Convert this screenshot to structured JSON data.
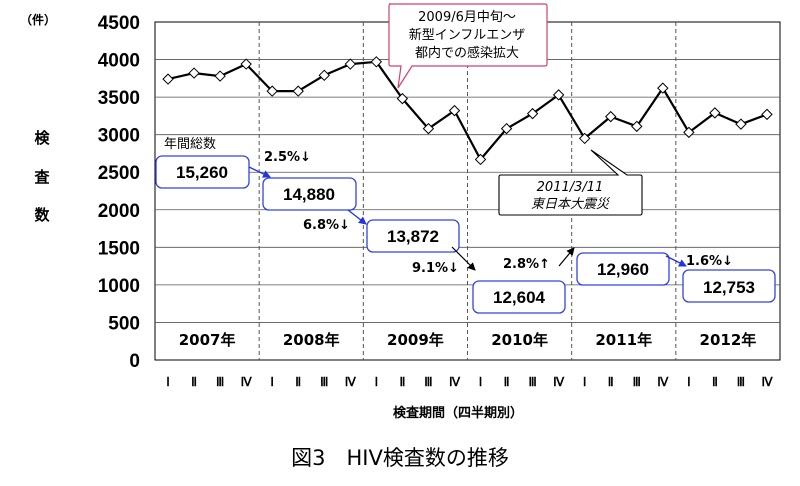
{
  "chart_data": {
    "type": "line",
    "y_unit": "（件）",
    "ylabel": [
      "検",
      "査",
      "数"
    ],
    "xlabel": "検査期間（四半期別）",
    "caption": "図3　HIV検査数の推移",
    "ylim": [
      0,
      4500
    ],
    "yticks": [
      0,
      500,
      1000,
      1500,
      2000,
      2500,
      3000,
      3500,
      4000,
      4500
    ],
    "grid": true,
    "years": [
      "2007年",
      "2008年",
      "2009年",
      "2010年",
      "2011年",
      "2012年"
    ],
    "quarters": [
      "Ⅰ",
      "Ⅱ",
      "Ⅲ",
      "Ⅳ"
    ],
    "series": [
      {
        "values": [
          3740,
          3820,
          3780,
          3940,
          3580,
          3580,
          3790,
          3940,
          3970,
          3480,
          3080,
          3320,
          2670,
          3080,
          3280,
          3530,
          2950,
          3240,
          3110,
          3620,
          3030,
          3290,
          3140,
          3270
        ]
      }
    ],
    "annual_totals": {
      "label": "年間総数",
      "values": [
        "15,260",
        "14,880",
        "13,872",
        "12,604",
        "12,960",
        "12,753"
      ]
    },
    "changes": [
      {
        "text": "2.5%",
        "arrow": "↓"
      },
      {
        "text": "6.8%",
        "arrow": "↓"
      },
      {
        "text": "9.1%",
        "arrow": "↓"
      },
      {
        "text": "2.8%",
        "arrow": "↑"
      },
      {
        "text": "1.6%",
        "arrow": "↓"
      }
    ],
    "annotations": [
      {
        "lines": [
          "2009/6月中旬～",
          "新型インフルエンザ",
          "都内での感染拡大"
        ]
      },
      {
        "lines": [
          "2011/3/11",
          "東日本大震災"
        ]
      }
    ]
  }
}
